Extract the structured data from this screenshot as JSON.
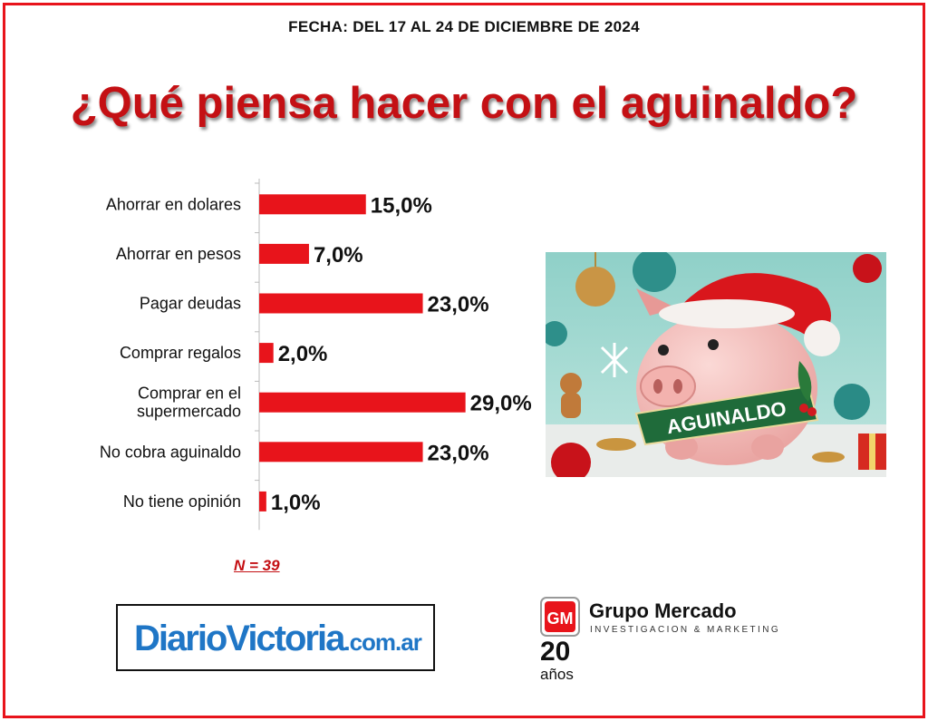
{
  "header": {
    "date": "FECHA: DEL 17 AL 24 DE DICIEMBRE DE 2024",
    "title": "¿Qué piensa hacer con el aguinaldo?"
  },
  "chart_data": {
    "type": "bar",
    "orientation": "horizontal",
    "categories": [
      "Ahorrar en dolares",
      "Ahorrar en pesos",
      "Pagar deudas",
      "Comprar regalos",
      "Comprar en el supermercado",
      "No cobra aguinaldo",
      "No tiene opinión"
    ],
    "category_lines": [
      [
        "Ahorrar en dolares"
      ],
      [
        "Ahorrar en pesos"
      ],
      [
        "Pagar deudas"
      ],
      [
        "Comprar regalos"
      ],
      [
        "Comprar en el",
        "supermercado"
      ],
      [
        "No cobra aguinaldo"
      ],
      [
        "No tiene opinión"
      ]
    ],
    "values": [
      15.0,
      7.0,
      23.0,
      2.0,
      29.0,
      23.0,
      1.0
    ],
    "value_labels": [
      "15,0%",
      "7,0%",
      "23,0%",
      "2,0%",
      "29,0%",
      "23,0%",
      "1,0%"
    ],
    "bar_color": "#e8141b"
  },
  "sample": "N = 39",
  "logos": {
    "diario_main": "DiarioVictoria",
    "diario_suffix": ".com.ar",
    "gm_name": "Grupo Mercado",
    "gm_tagline": "INVESTIGACION & MARKETING",
    "gm_years": "20",
    "gm_years_word": "años"
  },
  "illustration": {
    "banner_text": "AGUINALDO"
  }
}
